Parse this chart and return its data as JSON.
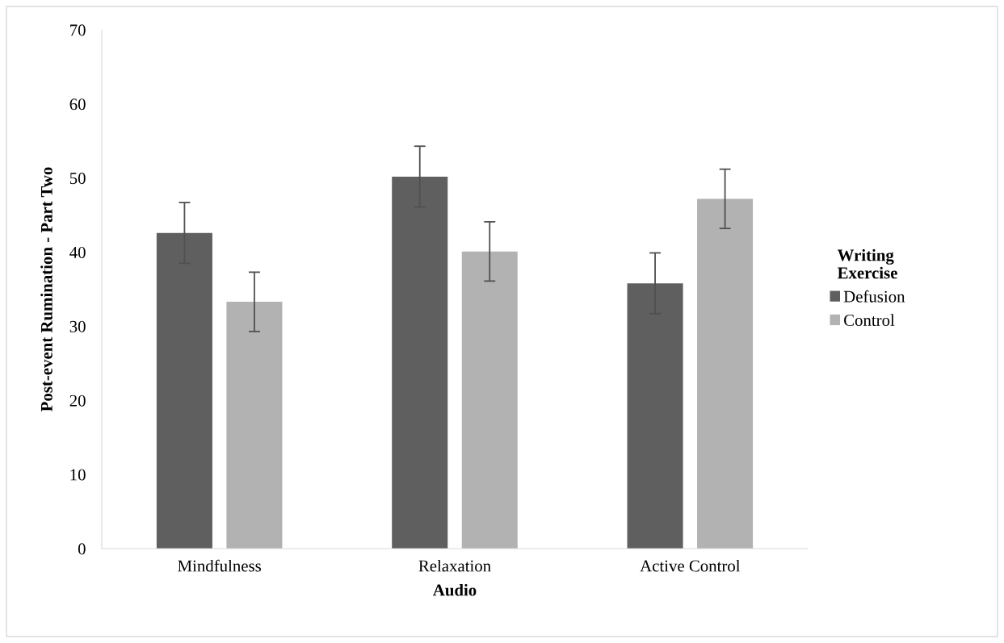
{
  "chart_data": {
    "type": "bar",
    "xlabel": "Audio",
    "ylabel": "Post-event Rumination - Part Two",
    "legend_title": "Writing\nExercise",
    "categories": [
      "Mindfulness",
      "Relaxation",
      "Active Control"
    ],
    "series": [
      {
        "name": "Defusion",
        "color": "#5f5f5f",
        "values": [
          42.6,
          50.2,
          35.8
        ],
        "errors": [
          4.1,
          4.1,
          4.1
        ]
      },
      {
        "name": "Control",
        "color": "#b2b2b2",
        "values": [
          33.3,
          40.1,
          47.2
        ],
        "errors": [
          4.0,
          4.0,
          4.0
        ]
      }
    ],
    "ylim": [
      0,
      70
    ],
    "yticks": [
      0,
      10,
      20,
      30,
      40,
      50,
      60,
      70
    ],
    "grid": false,
    "legend": "right"
  }
}
